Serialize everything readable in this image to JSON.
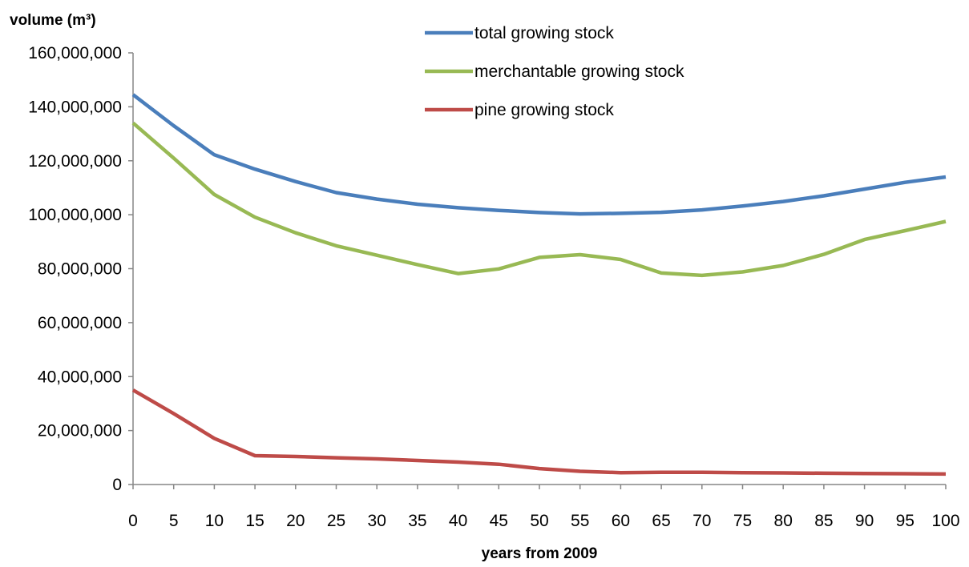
{
  "chart_data": {
    "type": "line",
    "title": "",
    "xlabel": "years from 2009",
    "ylabel": "volume (m³)",
    "x": [
      0,
      5,
      10,
      15,
      20,
      25,
      30,
      35,
      40,
      45,
      50,
      55,
      60,
      65,
      70,
      75,
      80,
      85,
      90,
      95,
      100
    ],
    "xlim": [
      0,
      100
    ],
    "ylim": [
      0,
      160000000
    ],
    "yticks": [
      0,
      20000000,
      40000000,
      60000000,
      80000000,
      100000000,
      120000000,
      140000000,
      160000000
    ],
    "ytick_labels": [
      "0",
      "20,000,000",
      "40,000,000",
      "60,000,000",
      "80,000,000",
      "100,000,000",
      "120,000,000",
      "140,000,000",
      "160,000,000"
    ],
    "xtick_labels": [
      "0",
      "5",
      "10",
      "15",
      "20",
      "25",
      "30",
      "35",
      "40",
      "45",
      "50",
      "55",
      "60",
      "65",
      "70",
      "75",
      "80",
      "85",
      "90",
      "95",
      "100"
    ],
    "grid": false,
    "legend_position": "top-center",
    "series": [
      {
        "name": "total growing stock",
        "color": "#4a7ebb",
        "values": [
          144500000,
          133000000,
          122200000,
          116900000,
          112300000,
          108200000,
          105800000,
          103900000,
          102600000,
          101600000,
          100800000,
          100300000,
          100500000,
          100900000,
          101800000,
          103200000,
          104900000,
          107000000,
          109500000,
          112000000,
          114000000
        ]
      },
      {
        "name": "merchantable growing stock",
        "color": "#98b954",
        "values": [
          134000000,
          121000000,
          107500000,
          99100000,
          93300000,
          88500000,
          85000000,
          81500000,
          78200000,
          79900000,
          84200000,
          85200000,
          83400000,
          78400000,
          77500000,
          78800000,
          81200000,
          85300000,
          90800000,
          94100000,
          97500000
        ]
      },
      {
        "name": "pine growing stock",
        "color": "#be4b48",
        "values": [
          35000000,
          26300000,
          17100000,
          10700000,
          10400000,
          9900000,
          9500000,
          8900000,
          8300000,
          7500000,
          5900000,
          4900000,
          4400000,
          4500000,
          4500000,
          4400000,
          4300000,
          4200000,
          4100000,
          4000000,
          3900000
        ]
      }
    ]
  }
}
